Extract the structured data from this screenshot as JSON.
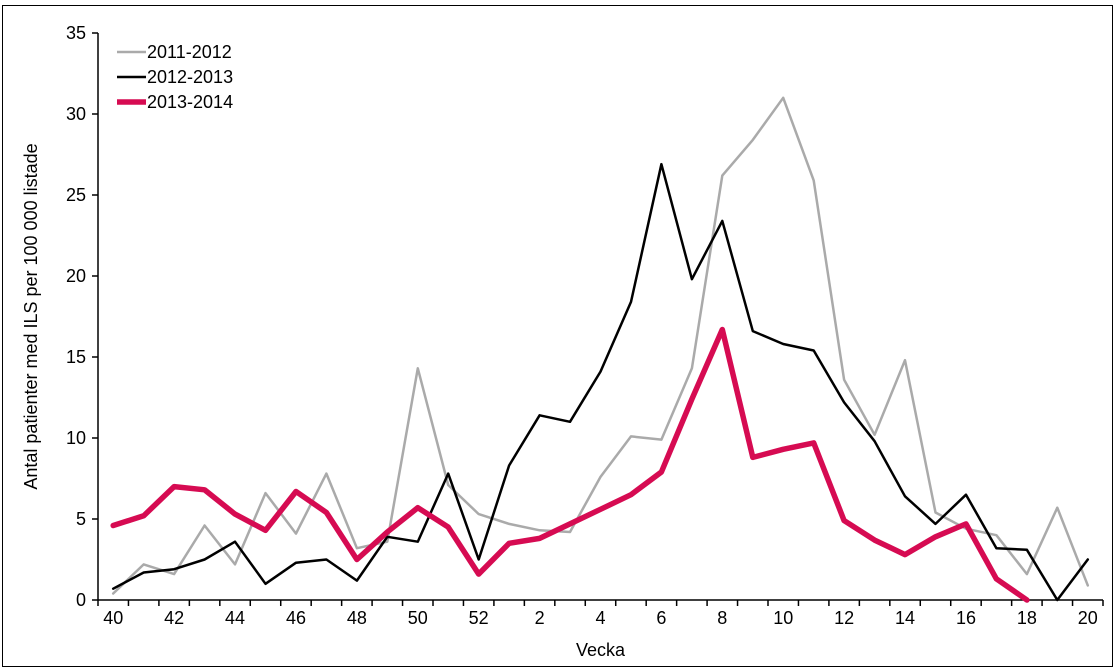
{
  "chart_data": {
    "type": "line",
    "title": "",
    "xlabel": "Vecka",
    "ylabel": "Antal patienter med ILS per 100 000 listade",
    "ylim": [
      0,
      35
    ],
    "yticks": [
      0,
      5,
      10,
      15,
      20,
      25,
      30,
      35
    ],
    "categories": [
      "40",
      "41",
      "42",
      "43",
      "44",
      "45",
      "46",
      "47",
      "48",
      "49",
      "50",
      "51",
      "52",
      "1",
      "2",
      "3",
      "4",
      "5",
      "6",
      "7",
      "8",
      "9",
      "10",
      "11",
      "12",
      "13",
      "14",
      "15",
      "16",
      "17",
      "18",
      "19",
      "20"
    ],
    "x_tick_labels": [
      "40",
      "42",
      "44",
      "46",
      "48",
      "50",
      "52",
      "2",
      "4",
      "6",
      "8",
      "10",
      "12",
      "14",
      "16",
      "18",
      "20"
    ],
    "grid": false,
    "legend_position": "top-left",
    "series": [
      {
        "name": "2011-2012",
        "color": "#aaaaaa",
        "width": 2.5,
        "values": [
          0.4,
          2.2,
          1.6,
          4.6,
          2.2,
          6.6,
          4.1,
          7.8,
          3.2,
          3.6,
          14.3,
          7.1,
          5.3,
          4.7,
          4.3,
          4.2,
          7.6,
          10.1,
          9.9,
          14.3,
          26.2,
          28.4,
          31.0,
          25.9,
          13.6,
          10.2,
          14.8,
          5.4,
          4.4,
          4.0,
          1.6,
          5.7,
          0.9
        ]
      },
      {
        "name": "2012-2013",
        "color": "#000000",
        "width": 2.5,
        "values": [
          0.7,
          1.7,
          1.9,
          2.5,
          3.6,
          1.0,
          2.3,
          2.5,
          1.2,
          3.9,
          3.6,
          7.8,
          2.5,
          8.3,
          11.4,
          11.0,
          14.1,
          18.4,
          26.9,
          19.8,
          23.4,
          16.6,
          15.8,
          15.4,
          12.2,
          9.8,
          6.4,
          4.7,
          6.5,
          3.2,
          3.1,
          0.0,
          2.5
        ]
      },
      {
        "name": "2013-2014",
        "color": "#d60b52",
        "width": 5.5,
        "values": [
          4.6,
          5.2,
          7.0,
          6.8,
          5.3,
          4.3,
          6.7,
          5.4,
          2.5,
          4.2,
          5.7,
          4.5,
          1.6,
          3.5,
          3.8,
          4.7,
          5.6,
          6.5,
          7.9,
          12.4,
          16.7,
          8.8,
          9.3,
          9.7,
          4.9,
          3.7,
          2.8,
          3.9,
          4.7,
          1.3,
          0.0,
          null,
          null
        ]
      }
    ]
  }
}
